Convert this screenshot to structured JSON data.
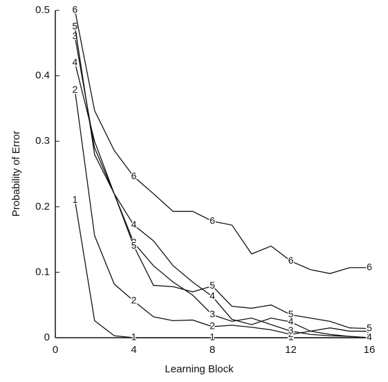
{
  "chart_data": {
    "type": "line",
    "x_label": "Learning Block",
    "y_label": "Probability of Error",
    "x": [
      1,
      2,
      3,
      4,
      5,
      6,
      7,
      8,
      9,
      10,
      11,
      12,
      13,
      14,
      15,
      16
    ],
    "xlim": [
      0,
      16
    ],
    "xticks": [
      0,
      4,
      8,
      12,
      16
    ],
    "ylim": [
      0,
      0.5
    ],
    "yticks": [
      0,
      0.1,
      0.2,
      0.3,
      0.4,
      0.5
    ],
    "series": [
      {
        "name": "1",
        "color": "#111111",
        "values": [
          0.21,
          0.026,
          0.003,
          0,
          0,
          0,
          0,
          0,
          0,
          0,
          0,
          0,
          0,
          0,
          0,
          0
        ]
      },
      {
        "name": "2",
        "color": "#111111",
        "values": [
          0.378,
          0.156,
          0.082,
          0.056,
          0.032,
          0.026,
          0.027,
          0.017,
          0.019,
          0.016,
          0.012,
          0.005,
          0.01,
          0.015,
          0.01,
          0.01
        ]
      },
      {
        "name": "3",
        "color": "#111111",
        "values": [
          0.46,
          0.29,
          0.22,
          0.145,
          0.11,
          0.085,
          0.065,
          0.035,
          0.025,
          0.03,
          0.02,
          0.01,
          0.005,
          0.003,
          0.002,
          0
        ]
      },
      {
        "name": "4",
        "color": "#111111",
        "values": [
          0.42,
          0.3,
          0.22,
          0.172,
          0.148,
          0.11,
          0.085,
          0.063,
          0.028,
          0.02,
          0.03,
          0.024,
          0.01,
          0.005,
          0.002,
          0
        ]
      },
      {
        "name": "5",
        "color": "#111111",
        "values": [
          0.475,
          0.28,
          0.22,
          0.14,
          0.08,
          0.078,
          0.07,
          0.079,
          0.048,
          0.045,
          0.05,
          0.035,
          0.03,
          0.025,
          0.015,
          0.014
        ]
      },
      {
        "name": "6",
        "color": "#111111",
        "values": [
          0.5,
          0.347,
          0.286,
          0.246,
          0.22,
          0.193,
          0.193,
          0.178,
          0.172,
          0.128,
          0.14,
          0.117,
          0.104,
          0.098,
          0.107,
          0.107
        ]
      }
    ]
  }
}
